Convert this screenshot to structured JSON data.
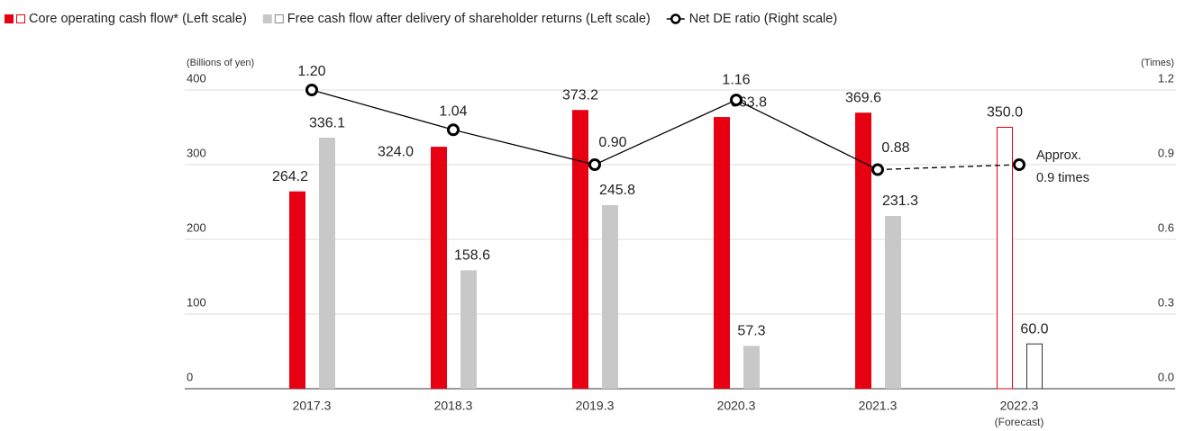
{
  "chart_data": {
    "type": "bar_line",
    "categories": [
      "2017.3",
      "2018.3",
      "2019.3",
      "2020.3",
      "2021.3",
      "2022.3"
    ],
    "category_note": "(Forecast)",
    "ylabel": "(Billions of yen)",
    "y2label": "(Times)",
    "ylim": [
      0,
      400
    ],
    "yticks": [
      0,
      100,
      200,
      300,
      400
    ],
    "y2lim": [
      0,
      1.2
    ],
    "y2ticks": [
      {
        "value": 0,
        "label": "0.0"
      },
      0.3,
      0.6,
      0.9,
      1.2
    ],
    "grid": true,
    "legend": "top-left",
    "series": [
      {
        "name": "Core operating cash flow* (Left scale)",
        "type": "bar",
        "color": "#e60012",
        "values": [
          264.2,
          324.0,
          373.2,
          363.8,
          369.6,
          350.0
        ],
        "value_labels": [
          "264.2",
          "324.0",
          "373.2",
          "363.8",
          "369.6",
          "350.0"
        ]
      },
      {
        "name": "Free cash flow after delivery of shareholder returns (Left scale)",
        "type": "bar",
        "color": "#c8c8c8",
        "values": [
          336.1,
          158.6,
          245.8,
          57.3,
          231.3,
          60.0
        ],
        "value_labels": [
          "336.1",
          "158.6",
          "245.8",
          "57.3",
          "231.3",
          "60.0"
        ]
      },
      {
        "name": "Net DE ratio (Right scale)",
        "type": "line",
        "axis": "y2",
        "color": "#000000",
        "values": [
          1.2,
          1.04,
          0.9,
          1.16,
          0.88,
          0.9
        ],
        "value_labels": [
          "1.20",
          "1.04",
          "0.90",
          "1.16",
          "0.88",
          null
        ]
      }
    ],
    "annotation": [
      "Approx.",
      "0.9 times"
    ]
  }
}
